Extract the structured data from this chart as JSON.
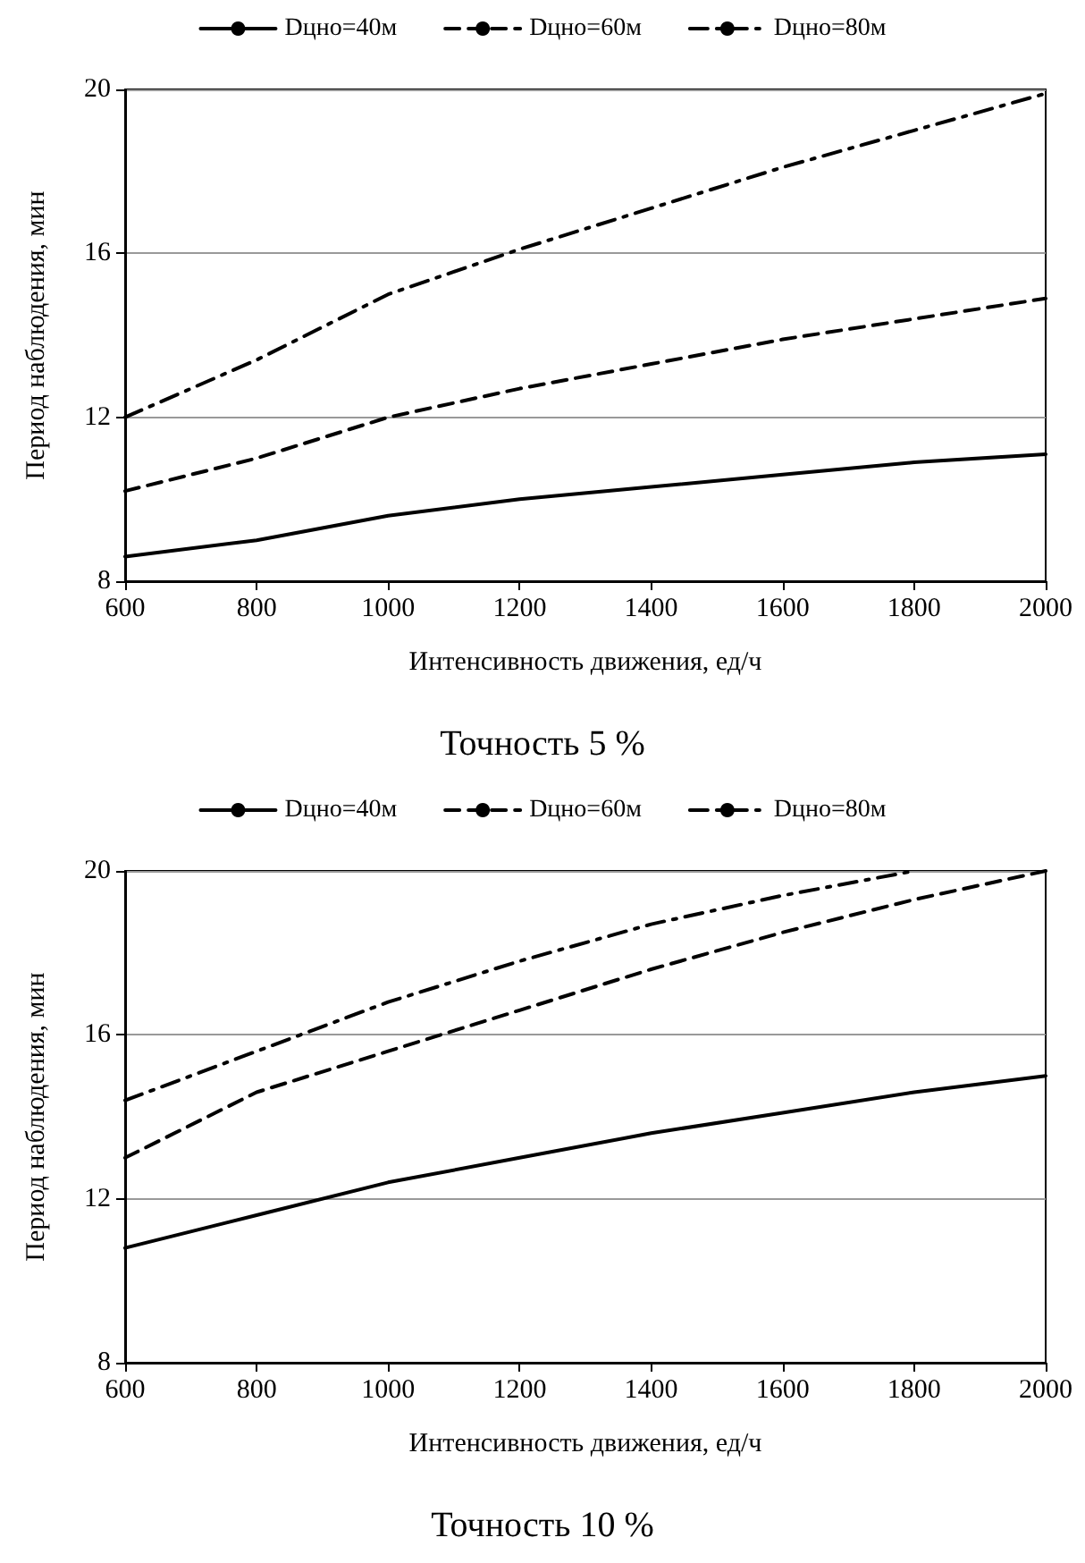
{
  "chart_data": [
    {
      "type": "line",
      "title": "Точность 5 %",
      "xlabel": "Интенсивность движения, ед/ч",
      "ylabel": "Период наблюдения, мин",
      "x": [
        600,
        800,
        1000,
        1200,
        1400,
        1600,
        1800,
        2000
      ],
      "series": [
        {
          "name": "Dцно=40м",
          "color": "#000000",
          "line_style": "solid",
          "values": [
            8.6,
            9.0,
            9.6,
            10.0,
            10.3,
            10.6,
            10.9,
            11.1
          ]
        },
        {
          "name": "Dцно=60м",
          "color": "#000000",
          "line_style": "dashed",
          "values": [
            10.2,
            11.0,
            12.0,
            12.7,
            13.3,
            13.9,
            14.4,
            14.9
          ]
        },
        {
          "name": "Dцно=80м",
          "color": "#000000",
          "line_style": "dashdot",
          "values": [
            12.0,
            13.4,
            15.0,
            16.1,
            17.1,
            18.1,
            19.0,
            19.9
          ]
        }
      ],
      "xlim": [
        600,
        2000
      ],
      "xticks": [
        600,
        800,
        1000,
        1200,
        1400,
        1600,
        1800,
        2000
      ],
      "ylim": [
        8,
        20
      ],
      "yticks": [
        8,
        12,
        16,
        20
      ],
      "grid": "y",
      "legend": "top",
      "marker": "none"
    },
    {
      "type": "line",
      "title": "Точность 10 %",
      "xlabel": "Интенсивность движения, ед/ч",
      "ylabel": "Период наблюдения, мин",
      "x": [
        600,
        800,
        1000,
        1200,
        1400,
        1600,
        1800,
        2000
      ],
      "series": [
        {
          "name": "Dцно=40м",
          "color": "#000000",
          "line_style": "solid",
          "values": [
            10.8,
            11.6,
            12.4,
            13.0,
            13.6,
            14.1,
            14.6,
            15.0
          ]
        },
        {
          "name": "Dцно=60м",
          "color": "#000000",
          "line_style": "dashed",
          "values": [
            13.0,
            14.6,
            15.6,
            16.6,
            17.6,
            18.5,
            19.3,
            20.0
          ]
        },
        {
          "name": "Dцно=80м",
          "color": "#000000",
          "line_style": "dashdot",
          "values": [
            14.4,
            15.6,
            16.8,
            17.8,
            18.7,
            19.4,
            20.0,
            null
          ]
        }
      ],
      "xlim": [
        600,
        2000
      ],
      "xticks": [
        600,
        800,
        1000,
        1200,
        1400,
        1600,
        1800,
        2000
      ],
      "ylim": [
        8,
        20
      ],
      "yticks": [
        8,
        12,
        16,
        20
      ],
      "grid": "y",
      "legend": "top",
      "marker": "none"
    }
  ]
}
